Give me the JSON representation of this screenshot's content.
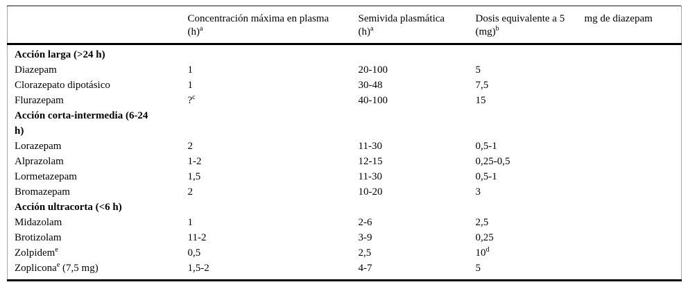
{
  "table": {
    "headers": [
      {
        "line1": "",
        "line2_pre": "",
        "line2_sup": ""
      },
      {
        "line1": "Concentración máxima en plasma",
        "line2_pre": "(h)",
        "line2_sup": "a"
      },
      {
        "line1": "Semivida plasmática",
        "line2_pre": "(h)",
        "line2_sup": "a"
      },
      {
        "line1": "Dosis equivalente a 5",
        "line2_pre": "(mg)",
        "line2_sup": "b"
      },
      {
        "line1": "mg de diazepam",
        "line2_pre": "",
        "line2_sup": ""
      }
    ],
    "rows": [
      {
        "label": "Acción larga (>24 h)"
      },
      {
        "name_pre": "Diazepam",
        "name_sup": "",
        "name_post": "",
        "cmax_pre": "1",
        "cmax_sup": "",
        "semivida": "20-100",
        "dosis_pre": "5",
        "dosis_sup": ""
      },
      {
        "name_pre": "Clorazepato dipotásico",
        "name_sup": "",
        "name_post": "",
        "cmax_pre": "1",
        "cmax_sup": "",
        "semivida": "30-48",
        "dosis_pre": "7,5",
        "dosis_sup": ""
      },
      {
        "name_pre": "Flurazepam",
        "name_sup": "",
        "name_post": "",
        "cmax_pre": "?",
        "cmax_sup": "c",
        "semivida": "40-100",
        "dosis_pre": "15",
        "dosis_sup": ""
      },
      {
        "label": "Acción corta-intermedia (6-24\nh)"
      },
      {
        "name_pre": "Lorazepam",
        "name_sup": "",
        "name_post": "",
        "cmax_pre": "2",
        "cmax_sup": "",
        "semivida": "11-30",
        "dosis_pre": "0,5-1",
        "dosis_sup": ""
      },
      {
        "name_pre": "Alprazolam",
        "name_sup": "",
        "name_post": "",
        "cmax_pre": "1-2",
        "cmax_sup": "",
        "semivida": "12-15",
        "dosis_pre": "0,25-0,5",
        "dosis_sup": ""
      },
      {
        "name_pre": "Lormetazepam",
        "name_sup": "",
        "name_post": "",
        "cmax_pre": "1,5",
        "cmax_sup": "",
        "semivida": "11-30",
        "dosis_pre": "0,5-1",
        "dosis_sup": ""
      },
      {
        "name_pre": "Bromazepam",
        "name_sup": "",
        "name_post": "",
        "cmax_pre": "2",
        "cmax_sup": "",
        "semivida": "10-20",
        "dosis_pre": "3",
        "dosis_sup": ""
      },
      {
        "label": "Acción ultracorta (<6 h)"
      },
      {
        "name_pre": "Midazolam",
        "name_sup": "",
        "name_post": "",
        "cmax_pre": "1",
        "cmax_sup": "",
        "semivida": "2-6",
        "dosis_pre": "2,5",
        "dosis_sup": ""
      },
      {
        "name_pre": "Brotizolam",
        "name_sup": "",
        "name_post": "",
        "cmax_pre": "11-2",
        "cmax_sup": "",
        "semivida": "3-9",
        "dosis_pre": "0,25",
        "dosis_sup": ""
      },
      {
        "name_pre": "Zolpidem",
        "name_sup": "e",
        "name_post": "",
        "cmax_pre": "0,5",
        "cmax_sup": "",
        "semivida": "2,5",
        "dosis_pre": "10",
        "dosis_sup": "d"
      },
      {
        "name_pre": "Zoplicona",
        "name_sup": "e",
        "name_post": " (7,5 mg)",
        "cmax_pre": "1,5-2",
        "cmax_sup": "",
        "semivida": "4-7",
        "dosis_pre": "5",
        "dosis_sup": ""
      }
    ]
  }
}
